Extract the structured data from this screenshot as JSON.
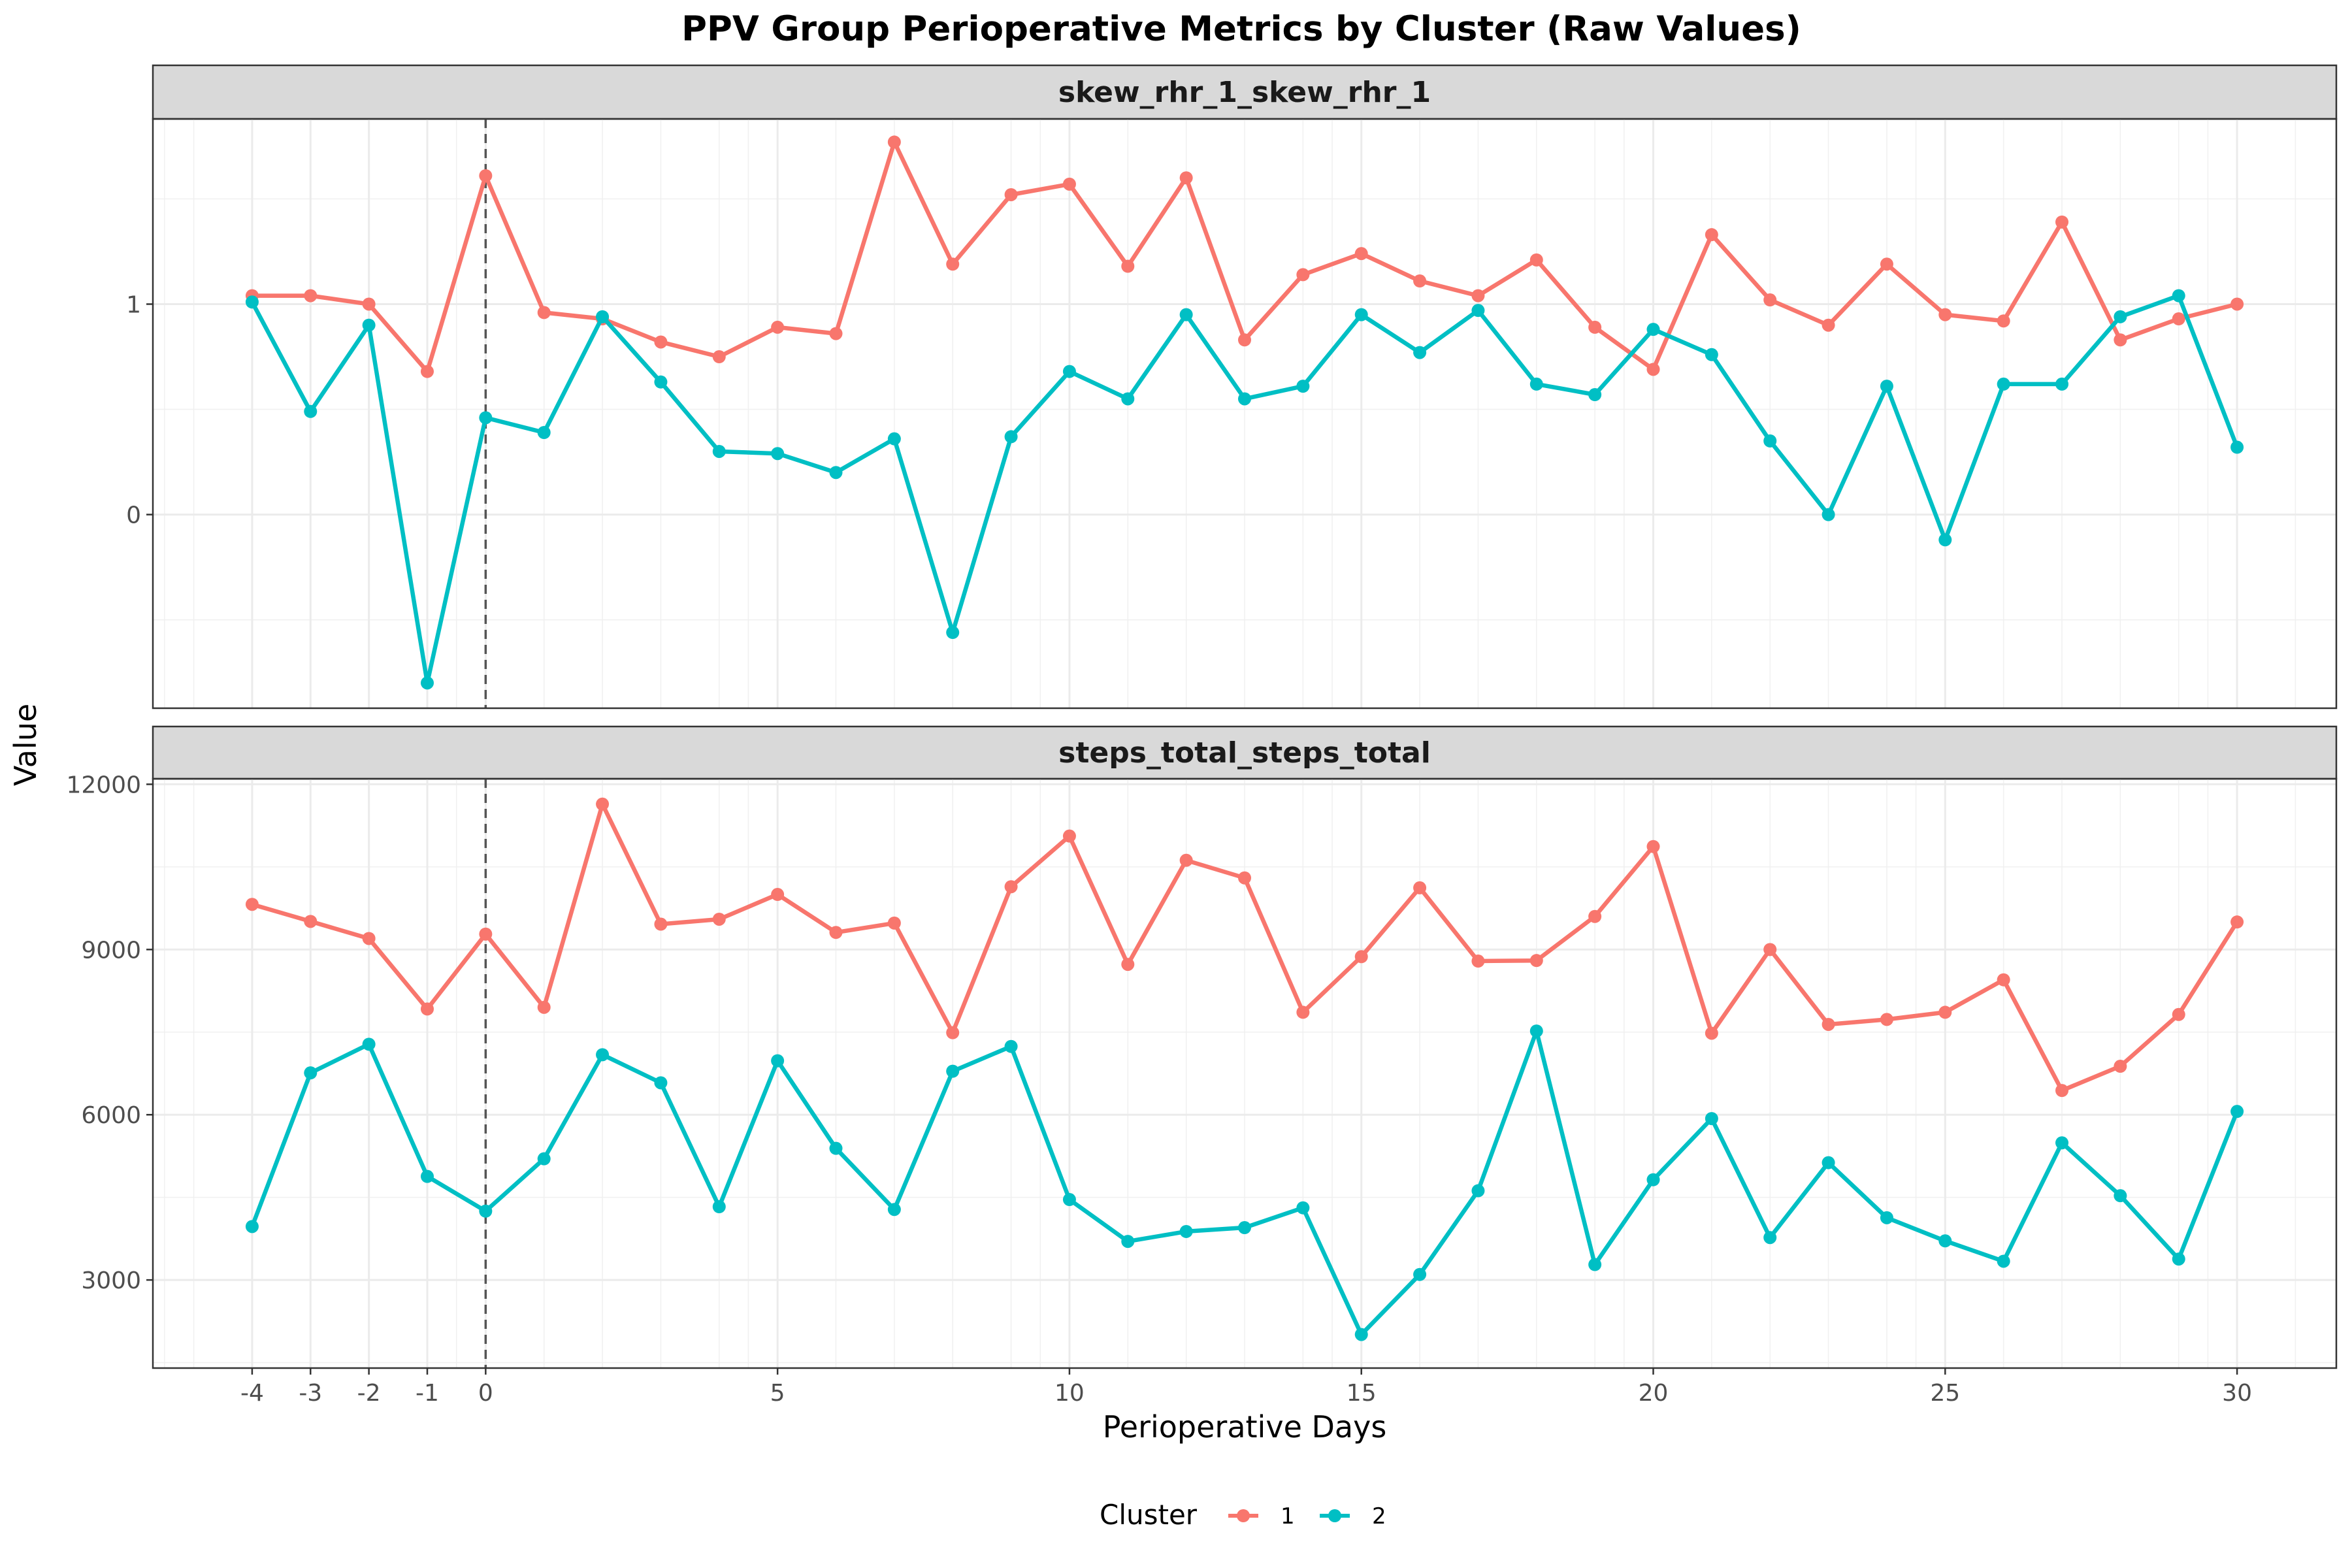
{
  "chart_data": {
    "type": "line",
    "title": "PPV Group Perioperative Metrics by Cluster (Raw Values)",
    "xlabel": "Perioperative Days",
    "ylabel": "Value",
    "x": [
      -4,
      -3,
      -2,
      -1,
      0,
      1,
      2,
      3,
      4,
      5,
      6,
      7,
      8,
      9,
      10,
      11,
      12,
      13,
      14,
      15,
      16,
      17,
      18,
      19,
      20,
      21,
      22,
      23,
      24,
      25,
      26,
      27,
      28,
      29,
      30
    ],
    "x_tick_labels": [
      "-4",
      "-3",
      "-2",
      "-1",
      "0",
      "5",
      "10",
      "15",
      "20",
      "25",
      "30"
    ],
    "x_ticks": [
      -4,
      -3,
      -2,
      -1,
      0,
      5,
      10,
      15,
      20,
      25,
      30
    ],
    "xlim": [
      -5.7,
      31.7
    ],
    "vline_x": 0,
    "grid": true,
    "legend": {
      "title": "Cluster",
      "position": "bottom",
      "entries": [
        {
          "label": "1",
          "color": "#F8766D"
        },
        {
          "label": "2",
          "color": "#00BFC4"
        }
      ]
    },
    "panels": [
      {
        "strip": "skew_rhr_1_skew_rhr_1",
        "ylim": [
          -0.92,
          1.88
        ],
        "y_ticks": [
          0,
          1
        ],
        "y_tick_labels": [
          "0",
          "1"
        ],
        "series": [
          {
            "name": "1",
            "color": "#F8766D",
            "values": [
              1.04,
              1.04,
              1.0,
              0.68,
              1.61,
              0.96,
              0.93,
              0.82,
              0.75,
              0.89,
              0.86,
              1.77,
              1.19,
              1.52,
              1.57,
              1.18,
              1.6,
              0.83,
              1.14,
              1.24,
              1.11,
              1.04,
              1.21,
              0.89,
              0.69,
              1.33,
              1.02,
              0.9,
              1.19,
              0.95,
              0.92,
              1.39,
              0.83,
              0.93,
              1.0
            ]
          },
          {
            "name": "2",
            "color": "#00BFC4",
            "values": [
              1.01,
              0.49,
              0.9,
              -0.8,
              0.46,
              0.39,
              0.94,
              0.63,
              0.3,
              0.29,
              0.2,
              0.36,
              -0.56,
              0.37,
              0.68,
              0.55,
              0.95,
              0.55,
              0.61,
              0.95,
              0.77,
              0.97,
              0.62,
              0.57,
              0.88,
              0.76,
              0.35,
              0.0,
              0.61,
              -0.12,
              0.62,
              0.62,
              0.94,
              1.04,
              0.32
            ]
          }
        ]
      },
      {
        "strip": "steps_total_steps_total",
        "ylim": [
          1400,
          12100
        ],
        "y_ticks": [
          3000,
          6000,
          9000,
          12000
        ],
        "y_tick_labels": [
          "3000",
          "6000",
          "9000",
          "12000"
        ],
        "series": [
          {
            "name": "1",
            "color": "#F8766D",
            "values": [
              9820,
              9510,
              9200,
              7920,
              9280,
              7950,
              11640,
              9460,
              9550,
              10000,
              9310,
              9480,
              7490,
              10140,
              11060,
              8730,
              10620,
              10300,
              7860,
              8870,
              10120,
              8790,
              8800,
              9600,
              10870,
              7480,
              9000,
              7640,
              7730,
              7860,
              8450,
              6440,
              6880,
              7820,
              9500
            ]
          },
          {
            "name": "2",
            "color": "#00BFC4",
            "values": [
              3970,
              6760,
              7280,
              4880,
              4250,
              5200,
              7090,
              6580,
              4330,
              6980,
              5390,
              4280,
              6790,
              7240,
              4460,
              3700,
              3880,
              3950,
              4310,
              2010,
              3100,
              4620,
              7520,
              3280,
              4820,
              5930,
              3770,
              5130,
              4130,
              3710,
              3340,
              5490,
              4530,
              3380,
              6060
            ]
          }
        ]
      }
    ]
  }
}
